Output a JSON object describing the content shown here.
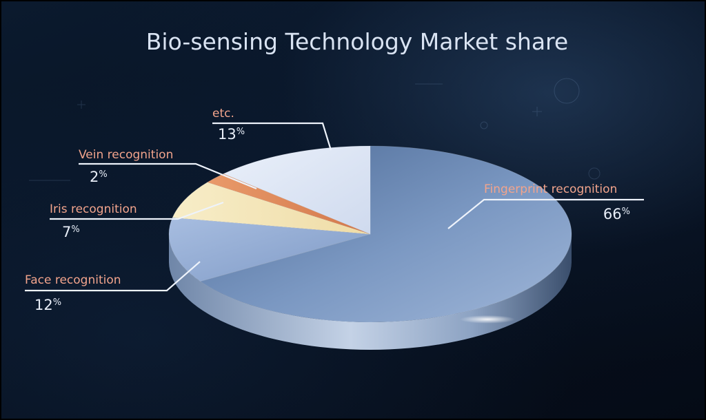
{
  "chart_data": {
    "type": "pie",
    "title": "Bio-sensing Technology Market share",
    "slices": [
      {
        "label": "Fingerprint recognition",
        "value": 66,
        "value_text": "66",
        "unit": "%",
        "color": "#5a7aa8"
      },
      {
        "label": "Face recognition",
        "value": 12,
        "value_text": "12",
        "unit": "%",
        "color": "#8fa9d4"
      },
      {
        "label": "Iris recognition",
        "value": 7,
        "value_text": "7",
        "unit": "%",
        "color": "#f3e6b8"
      },
      {
        "label": "Vein recognition",
        "value": 2,
        "value_text": "2",
        "unit": "%",
        "color": "#e08a5c"
      },
      {
        "label": "etc.",
        "value": 13,
        "value_text": "13",
        "unit": "%",
        "color": "#dfe7f5"
      }
    ],
    "legend": "callout labels"
  }
}
